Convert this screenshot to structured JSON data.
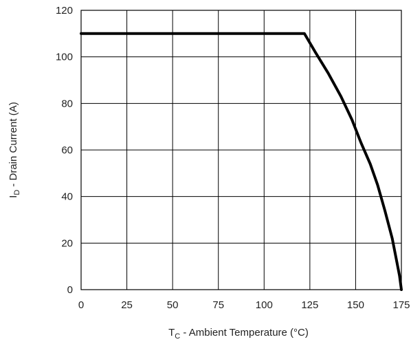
{
  "chart_data": {
    "type": "line",
    "xlabel": {
      "main": "T",
      "sub": "C",
      "rest": " -  Ambient Temperature (°C)"
    },
    "ylabel": {
      "main": "I",
      "sub": "D",
      "rest": " -  Drain Current (A)"
    },
    "xlim": [
      0,
      175
    ],
    "ylim": [
      0,
      120
    ],
    "xticks": [
      "0",
      "25",
      "50",
      "75",
      "100",
      "125",
      "150",
      "175"
    ],
    "yticks": [
      "0",
      "20",
      "40",
      "60",
      "80",
      "100",
      "120"
    ],
    "grid": true,
    "series": [
      {
        "x": [
          0,
          122,
          128,
          135,
          142,
          148,
          153,
          158,
          162,
          166,
          170,
          172,
          174,
          175
        ],
        "y": [
          110,
          110,
          102,
          93,
          83,
          73,
          63,
          54,
          45,
          34,
          22,
          14,
          6,
          0
        ]
      }
    ]
  }
}
